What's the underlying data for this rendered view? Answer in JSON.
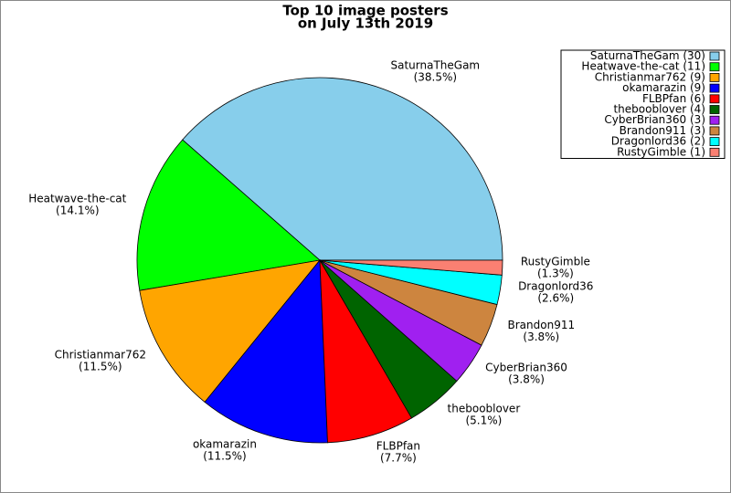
{
  "chart_data": {
    "type": "pie",
    "title": [
      "Top 10 image posters",
      "on July 13th 2019"
    ],
    "categories": [
      "SaturnaTheGam",
      "Heatwave-the-cat",
      "Christianmar762",
      "okamarazin",
      "FLBPfan",
      "thebooblover",
      "CyberBrian360",
      "Brandon911",
      "Dragonlord36",
      "RustyGimble"
    ],
    "values": [
      38.5,
      14.1,
      11.5,
      11.5,
      7.7,
      5.1,
      3.8,
      3.8,
      2.6,
      1.3
    ],
    "value_labels": [
      "(38.5%)",
      "(14.1%)",
      "(11.5%)",
      "(11.5%)",
      "(7.7%)",
      "(5.1%)",
      "(3.8%)",
      "(3.8%)",
      "(2.6%)",
      "(1.3%)"
    ],
    "legend_labels": [
      "SaturnaTheGam (30)",
      "Heatwave-the-cat (11)",
      "Christianmar762 (9)",
      "okamarazin (9)",
      "FLBPfan (6)",
      "thebooblover (4)",
      "CyberBrian360 (3)",
      "Brandon911 (3)",
      "Dragonlord36 (2)",
      "RustyGimble (1)"
    ],
    "colors": [
      "#87ceeb",
      "#00ff00",
      "#ffa500",
      "#0000ff",
      "#ff0000",
      "#006400",
      "#a020f0",
      "#cd853f",
      "#00ffff",
      "#fa8072"
    ],
    "legend": "upper right"
  }
}
